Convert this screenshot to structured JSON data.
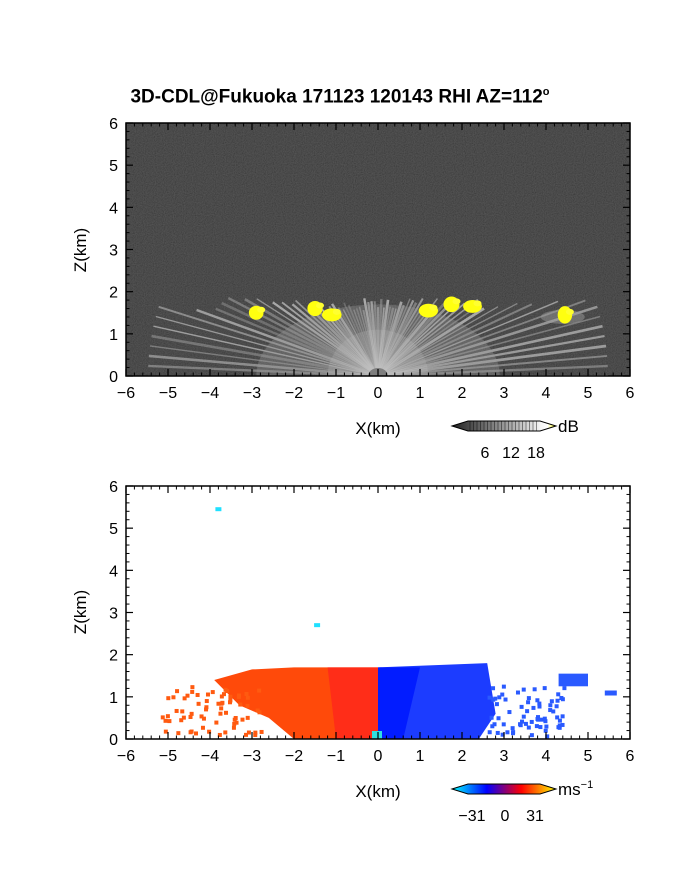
{
  "title": "3D-CDL@Fukuoka 171123 120143 RHI AZ=112",
  "title_degree": "o",
  "chart_data": [
    {
      "type": "heatmap",
      "panel": "reflectivity",
      "xlabel": "X(km)",
      "ylabel": "Z(km)",
      "xlim": [
        -6,
        6
      ],
      "ylim": [
        0,
        6
      ],
      "xticks": [
        "-6",
        "-5",
        "-4",
        "-3",
        "-2",
        "-1",
        "0",
        "1",
        "2",
        "3",
        "4",
        "5",
        "6"
      ],
      "yticks": [
        "0",
        "1",
        "2",
        "3",
        "4",
        "5",
        "6"
      ],
      "colorbar": {
        "unit": "dB",
        "ticks": [
          "6",
          "12",
          "18"
        ],
        "range": [
          0,
          20
        ],
        "colors": [
          "#202020",
          "#ffffff",
          "#ffff00"
        ]
      },
      "background": "#1a1a1a",
      "echo_top_km": 1.7,
      "yellow_cells": [
        {
          "x": -2.9,
          "z": 1.5
        },
        {
          "x": -1.5,
          "z": 1.6
        },
        {
          "x": -1.1,
          "z": 1.45
        },
        {
          "x": 1.2,
          "z": 1.55
        },
        {
          "x": 1.75,
          "z": 1.7
        },
        {
          "x": 2.25,
          "z": 1.65
        },
        {
          "x": 4.45,
          "z": 1.45
        }
      ]
    },
    {
      "type": "heatmap",
      "panel": "doppler_velocity",
      "xlabel": "X(km)",
      "ylabel": "Z(km)",
      "xlim": [
        -6,
        6
      ],
      "ylim": [
        0,
        6
      ],
      "xticks": [
        "-6",
        "-5",
        "-4",
        "-3",
        "-2",
        "-1",
        "0",
        "1",
        "2",
        "3",
        "4",
        "5",
        "6"
      ],
      "yticks": [
        "0",
        "1",
        "2",
        "3",
        "4",
        "5",
        "6"
      ],
      "colorbar": {
        "unit": "ms",
        "unit_exp": "−1",
        "ticks": [
          "−31",
          "0",
          "31"
        ],
        "range": [
          -31,
          31
        ],
        "colors": [
          "#00ffff",
          "#0000ff",
          "#ff0000",
          "#ffff00"
        ]
      },
      "approach_velocity_ms": -12,
      "recede_velocity_ms": 12,
      "echo_top_km": 1.7,
      "isolated_points": [
        {
          "x": -3.8,
          "z": 5.45
        },
        {
          "x": -1.45,
          "z": 2.7
        }
      ]
    }
  ]
}
